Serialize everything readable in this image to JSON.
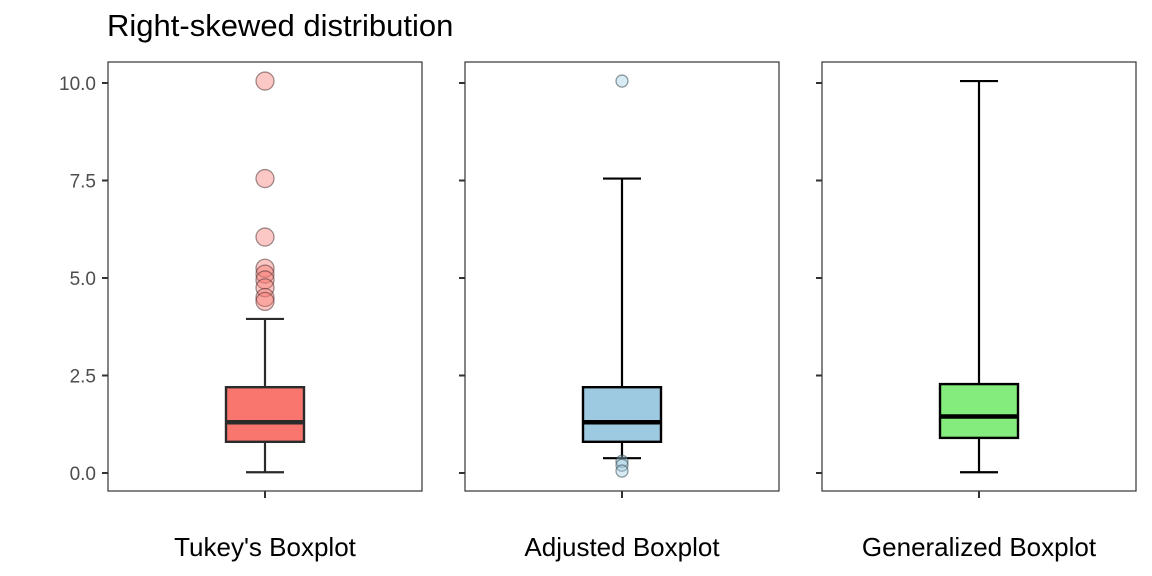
{
  "title": "Right-skewed distribution",
  "chart_data": [
    {
      "type": "boxplot",
      "xlabel": "Tukey's Boxplot",
      "color": "#F8766D",
      "ylim": [
        -0.3,
        10.6
      ],
      "yticks": [
        "0.0",
        "2.5",
        "5.0",
        "7.5",
        "10.0"
      ],
      "ytick_values": [
        0.0,
        2.5,
        5.0,
        7.5,
        10.0
      ],
      "box": {
        "whisker_low": 0.02,
        "q1": 0.8,
        "median": 1.3,
        "q3": 2.2,
        "whisker_high": 3.95
      },
      "outliers": [
        10.05,
        7.55,
        6.05,
        5.25,
        5.1,
        4.95,
        4.75,
        4.5,
        4.4
      ]
    },
    {
      "type": "boxplot",
      "xlabel": "Adjusted Boxplot",
      "color": "#9ECAE1",
      "ylim": [
        -0.3,
        10.6
      ],
      "box": {
        "whisker_low": 0.38,
        "q1": 0.8,
        "median": 1.3,
        "q3": 2.2,
        "whisker_high": 7.55
      },
      "outliers": [
        10.05,
        0.3,
        0.2,
        0.05
      ]
    },
    {
      "type": "boxplot",
      "xlabel": "Generalized Boxplot",
      "color": "#84EC7C",
      "ylim": [
        -0.3,
        10.6
      ],
      "box": {
        "whisker_low": 0.02,
        "q1": 0.9,
        "median": 1.45,
        "q3": 2.28,
        "whisker_high": 10.05
      },
      "outliers": []
    }
  ]
}
